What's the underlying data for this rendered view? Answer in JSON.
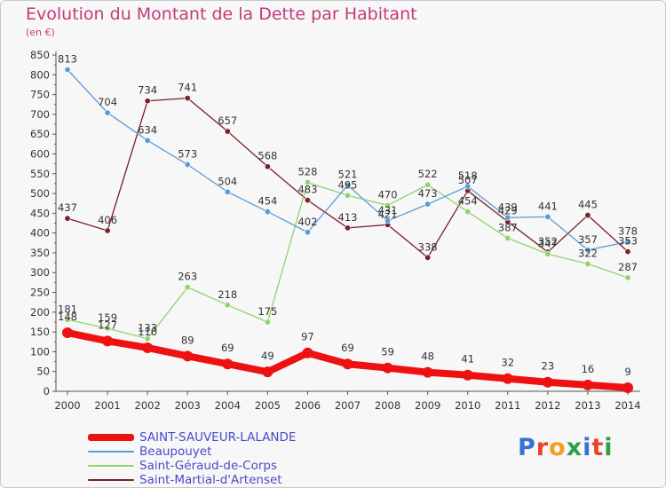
{
  "title": "Evolution du Montant de la Dette par Habitant",
  "subtitle": "(en €)",
  "logo": {
    "text": "Proxiti",
    "colors": [
      "#3b6fd1",
      "#e8462a",
      "#f0a020",
      "#2e9e4a",
      "#3b6fd1",
      "#e8462a",
      "#2e9e4a"
    ]
  },
  "chart_data": {
    "type": "line",
    "title": "Evolution du Montant de la Dette par Habitant",
    "subtitle": "(en €)",
    "x": [
      "2000",
      "2001",
      "2002",
      "2003",
      "2004",
      "2005",
      "2006",
      "2007",
      "2008",
      "2009",
      "2010",
      "2011",
      "2012",
      "2013",
      "2014"
    ],
    "y_ticks": [
      0,
      50,
      100,
      150,
      200,
      250,
      300,
      350,
      400,
      450,
      500,
      550,
      600,
      650,
      700,
      750,
      800,
      850
    ],
    "ylim": [
      0,
      850
    ],
    "grid": false,
    "legend_position": "bottom-left",
    "series": [
      {
        "name": "SAINT-SAUVEUR-LALANDE",
        "color": "#ee1111",
        "values": [
          148,
          127,
          110,
          89,
          69,
          49,
          97,
          69,
          59,
          48,
          41,
          32,
          23,
          16,
          9
        ]
      },
      {
        "name": "Beaupouyet",
        "color": "#5b9bd5",
        "values": [
          813,
          704,
          634,
          573,
          504,
          454,
          402,
          521,
          431,
          473,
          518,
          439,
          441,
          357,
          378
        ]
      },
      {
        "name": "Saint-Géraud-de-Corps",
        "color": "#8fd36a",
        "values": [
          181,
          159,
          133,
          263,
          218,
          175,
          528,
          495,
          470,
          522,
          454,
          387,
          347,
          322,
          287
        ]
      },
      {
        "name": "Saint-Martial-d'Artenset",
        "color": "#7a1f2b",
        "values": [
          437,
          406,
          734,
          741,
          657,
          568,
          483,
          413,
          421,
          338,
          507,
          429,
          352,
          445,
          353
        ]
      }
    ]
  }
}
